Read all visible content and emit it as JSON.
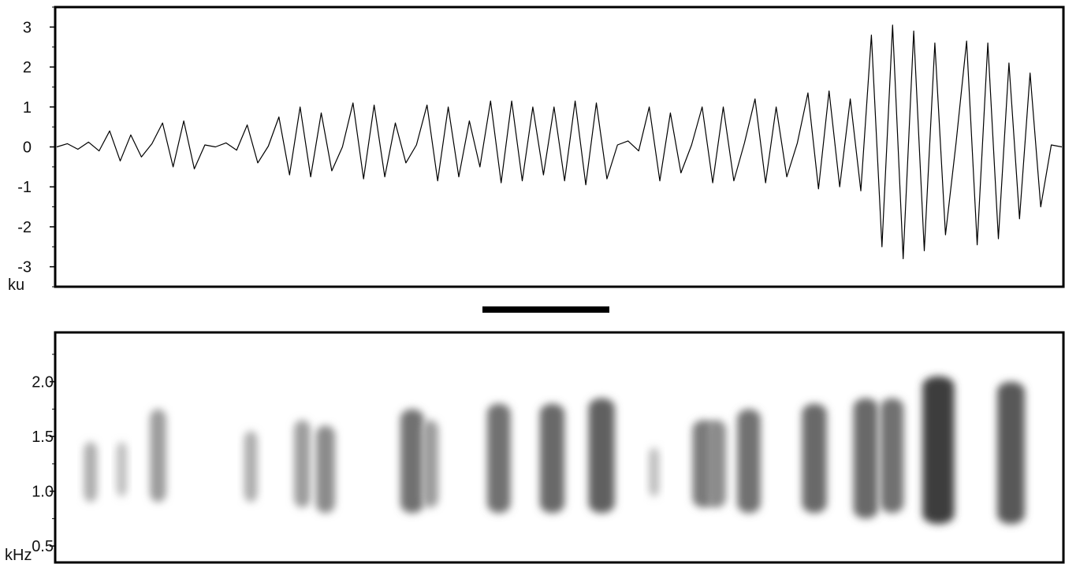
{
  "chart_data": [
    {
      "type": "line",
      "panel": "waveform",
      "ylabel": "ku",
      "ylim": [
        -3.5,
        3.5
      ],
      "y_ticks": [
        3,
        2,
        1,
        0,
        -1,
        -2,
        -3
      ],
      "y_tick_labels": [
        "3",
        "2",
        "1",
        "0",
        "-1",
        "-2",
        "-3"
      ],
      "grid": false,
      "legend": "none",
      "series": [
        {
          "values": [
            0.0,
            0.08,
            -0.06,
            0.12,
            -0.1,
            0.4,
            -0.35,
            0.3,
            -0.25,
            0.08,
            0.6,
            -0.5,
            0.65,
            -0.55,
            0.05,
            0.0,
            0.1,
            -0.08,
            0.55,
            -0.4,
            0.02,
            0.75,
            -0.7,
            1.0,
            -0.75,
            0.85,
            -0.6,
            0.0,
            1.1,
            -0.8,
            1.05,
            -0.75,
            0.6,
            -0.4,
            0.05,
            1.05,
            -0.85,
            1.0,
            -0.75,
            0.65,
            -0.5,
            1.15,
            -0.9,
            1.15,
            -0.85,
            1.0,
            -0.7,
            1.0,
            -0.85,
            1.15,
            -0.95,
            1.1,
            -0.8,
            0.05,
            0.15,
            -0.1,
            1.0,
            -0.85,
            0.85,
            -0.65,
            0.05,
            1.0,
            -0.9,
            1.0,
            -0.85,
            0.1,
            1.2,
            -0.9,
            1.0,
            -0.75,
            0.1,
            1.35,
            -1.05,
            1.4,
            -1.0,
            1.2,
            -1.1,
            2.8,
            -2.5,
            3.05,
            -2.8,
            2.9,
            -2.6,
            2.6,
            -2.2,
            0.1,
            2.65,
            -2.45,
            2.6,
            -2.3,
            2.1,
            -1.8,
            1.85,
            -1.5,
            0.05,
            0.0
          ]
        }
      ]
    },
    {
      "type": "heatmap",
      "panel": "spectrogram",
      "ylabel": "kHz",
      "ylim": [
        0.35,
        2.45
      ],
      "y_ticks": [
        2.0,
        1.5,
        1.0,
        0.5
      ],
      "y_tick_labels": [
        "2.0",
        "1.5",
        "1.0",
        "0.5"
      ],
      "color_scale": [
        "#ffffff",
        "#1a1a1a"
      ],
      "grid": false,
      "legend": "none",
      "syllables": [
        {
          "x": 0.035,
          "f_low": 0.9,
          "f_high": 1.45,
          "intensity": 0.25
        },
        {
          "x": 0.066,
          "f_low": 0.95,
          "f_high": 1.45,
          "intensity": 0.15
        },
        {
          "x": 0.102,
          "f_low": 0.9,
          "f_high": 1.75,
          "intensity": 0.35
        },
        {
          "x": 0.194,
          "f_low": 0.9,
          "f_high": 1.55,
          "intensity": 0.25
        },
        {
          "x": 0.245,
          "f_low": 0.85,
          "f_high": 1.65,
          "intensity": 0.35
        },
        {
          "x": 0.268,
          "f_low": 0.8,
          "f_high": 1.6,
          "intensity": 0.45
        },
        {
          "x": 0.354,
          "f_low": 0.8,
          "f_high": 1.75,
          "intensity": 0.6
        },
        {
          "x": 0.372,
          "f_low": 0.85,
          "f_high": 1.65,
          "intensity": 0.35
        },
        {
          "x": 0.44,
          "f_low": 0.8,
          "f_high": 1.8,
          "intensity": 0.6
        },
        {
          "x": 0.493,
          "f_low": 0.8,
          "f_high": 1.8,
          "intensity": 0.65
        },
        {
          "x": 0.542,
          "f_low": 0.8,
          "f_high": 1.85,
          "intensity": 0.7
        },
        {
          "x": 0.594,
          "f_low": 0.95,
          "f_high": 1.4,
          "intensity": 0.15
        },
        {
          "x": 0.643,
          "f_low": 0.85,
          "f_high": 1.65,
          "intensity": 0.55
        },
        {
          "x": 0.656,
          "f_low": 0.85,
          "f_high": 1.65,
          "intensity": 0.45
        },
        {
          "x": 0.688,
          "f_low": 0.8,
          "f_high": 1.75,
          "intensity": 0.6
        },
        {
          "x": 0.753,
          "f_low": 0.8,
          "f_high": 1.8,
          "intensity": 0.65
        },
        {
          "x": 0.804,
          "f_low": 0.75,
          "f_high": 1.85,
          "intensity": 0.65
        },
        {
          "x": 0.83,
          "f_low": 0.8,
          "f_high": 1.85,
          "intensity": 0.6
        },
        {
          "x": 0.876,
          "f_low": 0.7,
          "f_high": 2.05,
          "intensity": 0.9
        },
        {
          "x": 0.948,
          "f_low": 0.7,
          "f_high": 2.0,
          "intensity": 0.75
        }
      ]
    }
  ]
}
